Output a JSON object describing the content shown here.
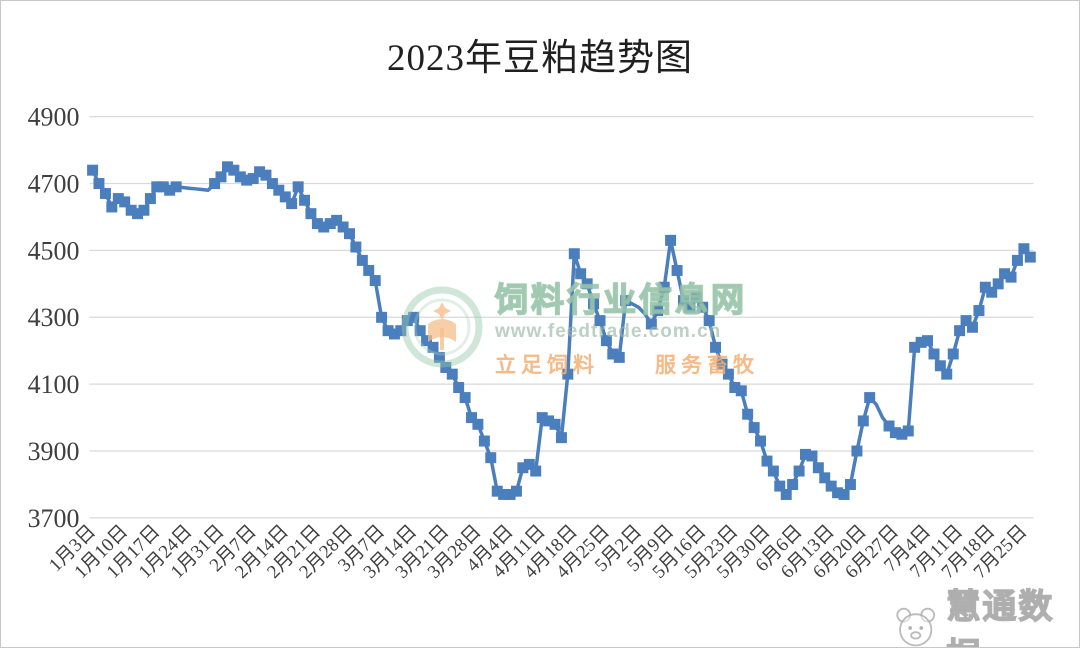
{
  "page": {
    "title": "2023年豆粕趋势图"
  },
  "watermark_center": {
    "site_name": "饲料行业信息网",
    "site_url": "www.feedtrade.com.cn",
    "slogan_left": "立足饲料",
    "slogan_right": "服务畜牧"
  },
  "watermark_corner": {
    "brand": "慧通数据"
  },
  "colors": {
    "series": "#4a7ebc",
    "gridline": "#d9d9d9",
    "axis_text": "#3f3f3f",
    "title_text": "#1f1f1f",
    "border": "#c8c8c8",
    "wm_green": "rgba(140,190,160,0.55)",
    "wm_orange": "rgba(243,174,113,0.8)",
    "wm_gray": "rgba(165,165,165,0.8)"
  },
  "chart_data": {
    "type": "line",
    "title": "2023年豆粕趋势图",
    "marker": "square",
    "grid": "horizontal",
    "legend": "none",
    "ylim": [
      3700,
      4900
    ],
    "ytick_interval": 200,
    "yticks": [
      4900,
      4700,
      4500,
      4300,
      4100,
      3900,
      3700
    ],
    "tick_every": 5,
    "tick_labels": [
      "1月3日",
      "1月10日",
      "1月17日",
      "1月24日",
      "1月31日",
      "2月7日",
      "2月14日",
      "2月21日",
      "2月28日",
      "3月7日",
      "3月14日",
      "3月21日",
      "3月28日",
      "4月4日",
      "4月11日",
      "4月18日",
      "4月25日",
      "5月2日",
      "5月9日",
      "5月16日",
      "5月23日",
      "5月30日",
      "6月6日",
      "6月13日",
      "6月20日",
      "6月27日",
      "7月4日",
      "7月11日",
      "7月18日",
      "7月25日"
    ],
    "x": [
      "1月3日",
      "1月4日",
      "1月5日",
      "1月6日",
      "1月9日",
      "1月10日",
      "1月11日",
      "1月12日",
      "1月13日",
      "1月16日",
      "1月17日",
      "1月18日",
      "1月19日",
      "1月20日",
      "1月23日",
      "1月24日",
      "1月25日",
      "1月26日",
      "1月27日",
      "1月30日",
      "1月31日",
      "2月1日",
      "2月2日",
      "2月3日",
      "2月6日",
      "2月7日",
      "2月8日",
      "2月9日",
      "2月10日",
      "2月13日",
      "2月14日",
      "2月15日",
      "2月16日",
      "2月17日",
      "2月20日",
      "2月21日",
      "2月22日",
      "2月23日",
      "2月24日",
      "2月27日",
      "2月28日",
      "3月1日",
      "3月2日",
      "3月3日",
      "3月6日",
      "3月7日",
      "3月8日",
      "3月9日",
      "3月10日",
      "3月13日",
      "3月14日",
      "3月15日",
      "3月16日",
      "3月17日",
      "3月20日",
      "3月21日",
      "3月22日",
      "3月23日",
      "3月24日",
      "3月27日",
      "3月28日",
      "3月29日",
      "3月30日",
      "3月31日",
      "4月3日",
      "4月4日",
      "4月5日",
      "4月6日",
      "4月7日",
      "4月10日",
      "4月11日",
      "4月12日",
      "4月13日",
      "4月14日",
      "4月17日",
      "4月18日",
      "4月19日",
      "4月20日",
      "4月21日",
      "4月24日",
      "4月25日",
      "4月26日",
      "4月27日",
      "4月28日",
      "5月1日",
      "5月2日",
      "5月3日",
      "5月4日",
      "5月5日",
      "5月8日",
      "5月9日",
      "5月10日",
      "5月11日",
      "5月12日",
      "5月15日",
      "5月16日",
      "5月17日",
      "5月18日",
      "5月19日",
      "5月22日",
      "5月23日",
      "5月24日",
      "5月25日",
      "5月26日",
      "5月29日",
      "5月30日",
      "5月31日",
      "6月1日",
      "6月2日",
      "6月5日",
      "6月6日",
      "6月7日",
      "6月8日",
      "6月9日",
      "6月12日",
      "6月13日",
      "6月14日",
      "6月15日",
      "6月16日",
      "6月19日",
      "6月20日",
      "6月21日",
      "6月22日",
      "6月23日",
      "6月26日",
      "6月27日",
      "6月28日",
      "6月29日",
      "6月30日",
      "7月3日",
      "7月4日",
      "7月5日",
      "7月6日",
      "7月7日",
      "7月10日",
      "7月11日",
      "7月12日",
      "7月13日",
      "7月14日",
      "7月17日",
      "7月18日",
      "7月19日",
      "7月20日",
      "7月21日",
      "7月24日",
      "7月25日",
      "7月26日"
    ],
    "values": [
      4740,
      4700,
      4670,
      4630,
      4655,
      4645,
      4620,
      4610,
      4620,
      4655,
      4690,
      4690,
      4680,
      4690,
      4688,
      4686,
      4684,
      4682,
      4680,
      4700,
      4720,
      4750,
      4740,
      4720,
      4710,
      4715,
      4735,
      4725,
      4700,
      4680,
      4660,
      4640,
      4690,
      4650,
      4610,
      4580,
      4570,
      4580,
      4590,
      4570,
      4550,
      4510,
      4470,
      4440,
      4410,
      4300,
      4260,
      4250,
      4260,
      4290,
      4300,
      4260,
      4230,
      4210,
      4180,
      4150,
      4130,
      4090,
      4060,
      4000,
      3980,
      3930,
      3880,
      3780,
      3770,
      3770,
      3780,
      3850,
      3860,
      3840,
      4000,
      3990,
      3980,
      3940,
      4130,
      4490,
      4430,
      4400,
      4340,
      4290,
      4230,
      4190,
      4180,
      4350,
      4340,
      4330,
      4310,
      4280,
      4320,
      4390,
      4530,
      4440,
      4350,
      4330,
      4360,
      4330,
      4290,
      4210,
      4160,
      4130,
      4090,
      4080,
      4010,
      3970,
      3930,
      3870,
      3840,
      3795,
      3770,
      3800,
      3840,
      3890,
      3885,
      3850,
      3820,
      3795,
      3775,
      3770,
      3800,
      3900,
      3990,
      4060,
      4040,
      4000,
      3975,
      3955,
      3950,
      3960,
      4210,
      4225,
      4230,
      4190,
      4155,
      4130,
      4190,
      4260,
      4290,
      4270,
      4320,
      4390,
      4375,
      4400,
      4430,
      4420,
      4470,
      4505,
      4480
    ],
    "no_marker_dates": [
      "1月23日",
      "1月24日",
      "1月25日",
      "1月26日",
      "1月27日",
      "5月1日",
      "5月2日",
      "5月3日",
      "6月22日",
      "6月23日"
    ]
  }
}
